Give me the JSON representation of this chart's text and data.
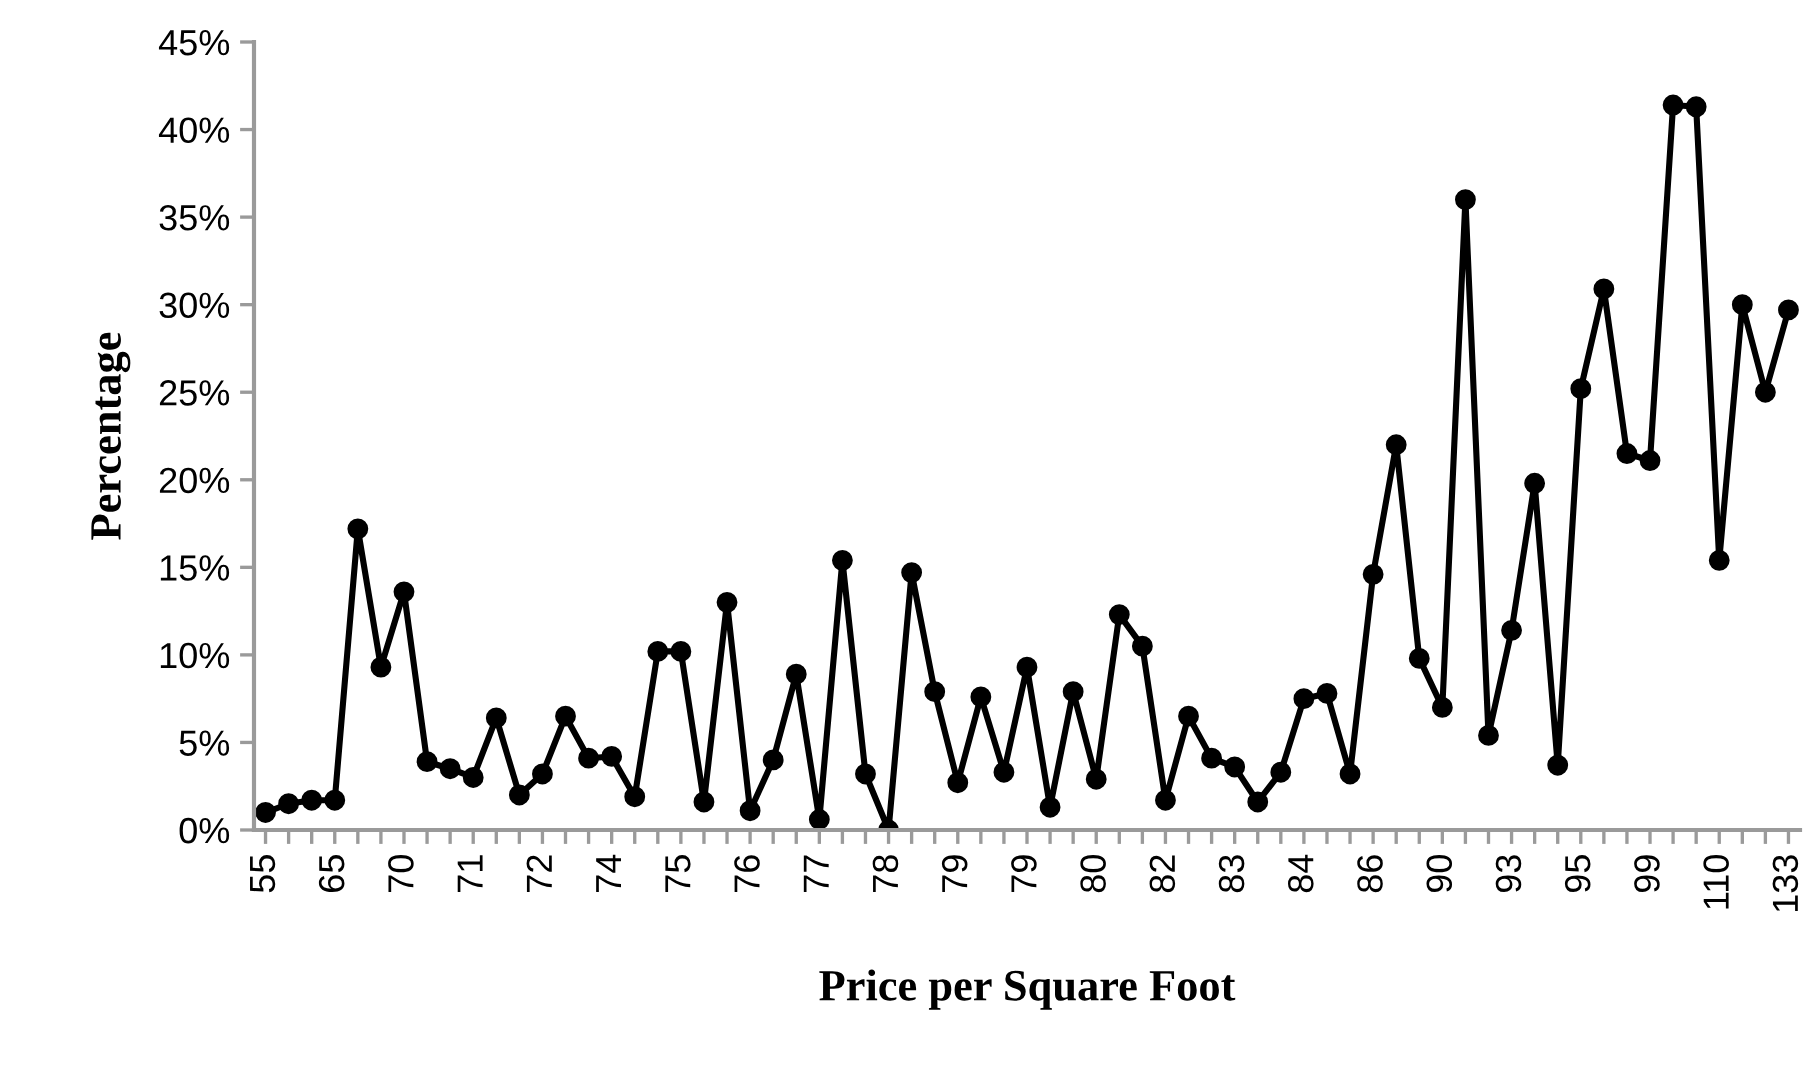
{
  "chart_data": {
    "type": "line",
    "xlabel": "Price per Square Foot",
    "ylabel": "Percentage",
    "categories": [
      "55",
      null,
      null,
      "65",
      null,
      null,
      "70",
      null,
      null,
      "71",
      null,
      null,
      "72",
      null,
      null,
      "74",
      null,
      null,
      "75",
      null,
      null,
      "76",
      null,
      null,
      "77",
      null,
      null,
      "78",
      null,
      null,
      "79",
      null,
      null,
      "79",
      null,
      null,
      "80",
      null,
      null,
      "82",
      null,
      null,
      "83",
      null,
      null,
      "84",
      null,
      null,
      "86",
      null,
      null,
      "90",
      null,
      null,
      "93",
      null,
      null,
      "95",
      null,
      null,
      "99",
      null,
      null,
      "110",
      null,
      null,
      "133"
    ],
    "series": [
      {
        "color": "#000000",
        "values": [
          1.0,
          1.5,
          1.7,
          1.7,
          17.2,
          9.3,
          13.6,
          3.9,
          3.5,
          3.0,
          6.4,
          2.0,
          3.2,
          6.5,
          4.1,
          4.2,
          1.9,
          10.2,
          10.2,
          1.6,
          13.0,
          1.1,
          4.0,
          8.9,
          0.6,
          15.4,
          3.2,
          0,
          14.7,
          7.9,
          2.7,
          7.6,
          3.3,
          9.3,
          1.3,
          7.9,
          2.9,
          12.3,
          10.5,
          1.7,
          6.5,
          4.1,
          3.6,
          1.6,
          3.3,
          7.5,
          7.8,
          3.2,
          14.6,
          22.0,
          9.8,
          7.0,
          36.0,
          5.4,
          11.4,
          19.8,
          3.7,
          25.2,
          30.9,
          21.5,
          21.1,
          41.4,
          41.3,
          15.4,
          30.0,
          25.0,
          29.7
        ]
      }
    ],
    "ylim": [
      0,
      45
    ],
    "yticks": [
      {
        "value": 0,
        "label": "0%"
      },
      {
        "value": 5,
        "label": "5%"
      },
      {
        "value": 10,
        "label": "10%"
      },
      {
        "value": 15,
        "label": "15%"
      },
      {
        "value": 20,
        "label": "20%"
      },
      {
        "value": 25,
        "label": "25%"
      },
      {
        "value": 30,
        "label": "30%"
      },
      {
        "value": 35,
        "label": "35%"
      },
      {
        "value": 40,
        "label": "40%"
      },
      {
        "value": 45,
        "label": "45%"
      }
    ],
    "marker": "circle",
    "line_style": "solid",
    "grid": false,
    "legend": false
  }
}
